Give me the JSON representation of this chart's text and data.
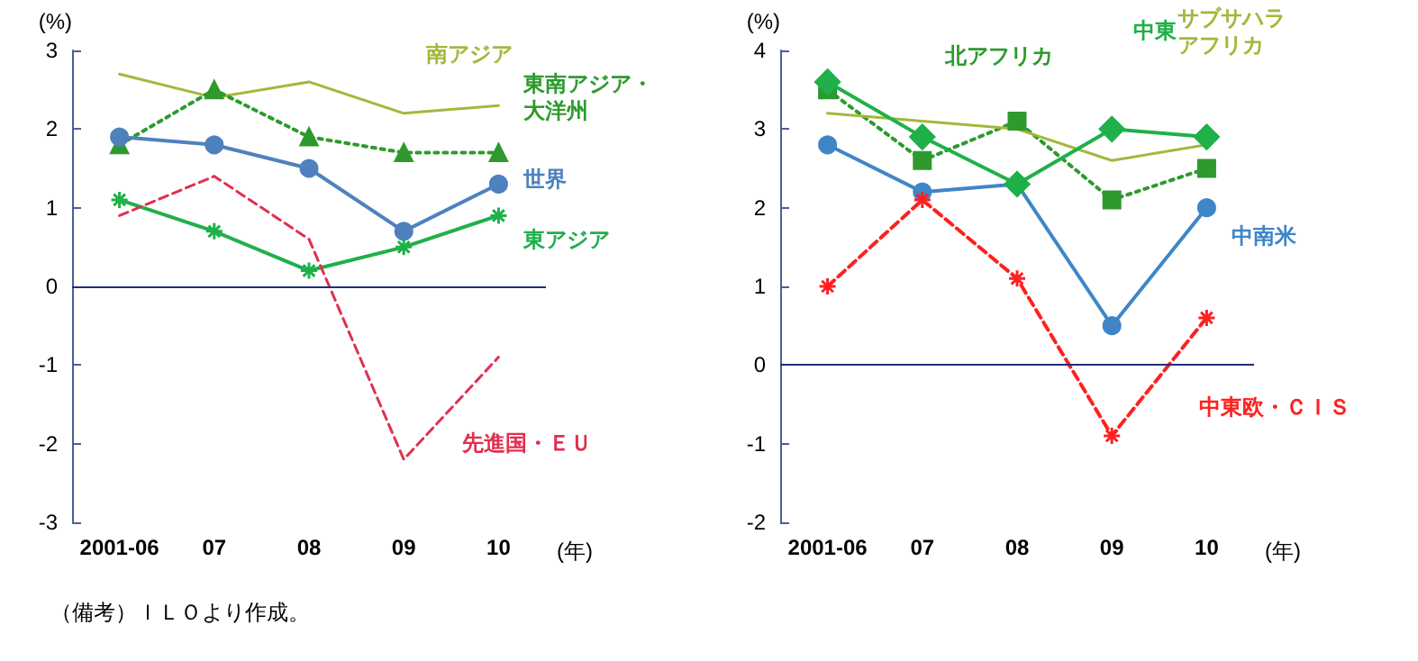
{
  "chart_data": [
    {
      "type": "line",
      "ylabel": "(%)",
      "xlabel": "(年)",
      "categories": [
        "2001-06",
        "07",
        "08",
        "09",
        "10"
      ],
      "ylim": [
        -3,
        3
      ],
      "yticks": [
        -3,
        -2,
        -1,
        0,
        1,
        2,
        3
      ],
      "grid": false,
      "legend": false,
      "annotations": [
        "（備考）ＩＬＯより作成。"
      ],
      "ref_lines": [
        {
          "axis": "y",
          "value": 0,
          "color": "#1f2f7a"
        }
      ],
      "series": [
        {
          "name": "南アジア",
          "color": "#a3b83c",
          "values": [
            2.7,
            2.4,
            2.6,
            2.2,
            2.3
          ],
          "marker": "none",
          "line_style": "solid"
        },
        {
          "name": "東南アジア・大洋州",
          "color": "#2e9a2e",
          "values": [
            1.8,
            2.5,
            1.9,
            1.7,
            1.7
          ],
          "marker": "triangle",
          "line_style": "dotted"
        },
        {
          "name": "世界",
          "color": "#4f81bd",
          "values": [
            1.9,
            1.8,
            1.5,
            0.7,
            1.3
          ],
          "marker": "circle",
          "line_style": "solid"
        },
        {
          "name": "東アジア",
          "color": "#1fb04a",
          "values": [
            1.1,
            0.7,
            0.2,
            0.5,
            0.9
          ],
          "marker": "cross",
          "line_style": "solid"
        },
        {
          "name": "先進国・ＥＵ",
          "color": "#e0304f",
          "values": [
            0.9,
            1.4,
            0.6,
            -2.2,
            -0.9
          ],
          "marker": "none",
          "line_style": "dashed"
        }
      ]
    },
    {
      "type": "line",
      "ylabel": "(%)",
      "xlabel": "(年)",
      "categories": [
        "2001-06",
        "07",
        "08",
        "09",
        "10"
      ],
      "ylim": [
        -2,
        4
      ],
      "yticks": [
        -2,
        -1,
        0,
        1,
        2,
        3,
        4
      ],
      "grid": false,
      "legend": false,
      "ref_lines": [
        {
          "axis": "y",
          "value": 0,
          "color": "#1f2f7a"
        }
      ],
      "series": [
        {
          "name": "北アフリカ",
          "color": "#2e9a2e",
          "values": [
            3.5,
            2.6,
            3.1,
            2.1,
            2.5
          ],
          "marker": "square",
          "line_style": "dotted"
        },
        {
          "name": "中東",
          "color": "#1fb04a",
          "values": [
            3.6,
            2.9,
            2.3,
            3.0,
            2.9
          ],
          "marker": "diamond",
          "line_style": "solid"
        },
        {
          "name": "サブサハラアフリカ",
          "color": "#a3b83c",
          "values": [
            3.2,
            3.1,
            3.0,
            2.6,
            2.8
          ],
          "marker": "none",
          "line_style": "solid"
        },
        {
          "name": "中南米",
          "color": "#3f86c8",
          "values": [
            2.8,
            2.2,
            2.3,
            0.5,
            2.0
          ],
          "marker": "circle",
          "line_style": "solid"
        },
        {
          "name": "中東欧・ＣＩＳ",
          "color": "#ff2020",
          "values": [
            1.0,
            2.1,
            1.1,
            -0.9,
            0.6
          ],
          "marker": "cross",
          "line_style": "dashed"
        }
      ]
    }
  ]
}
